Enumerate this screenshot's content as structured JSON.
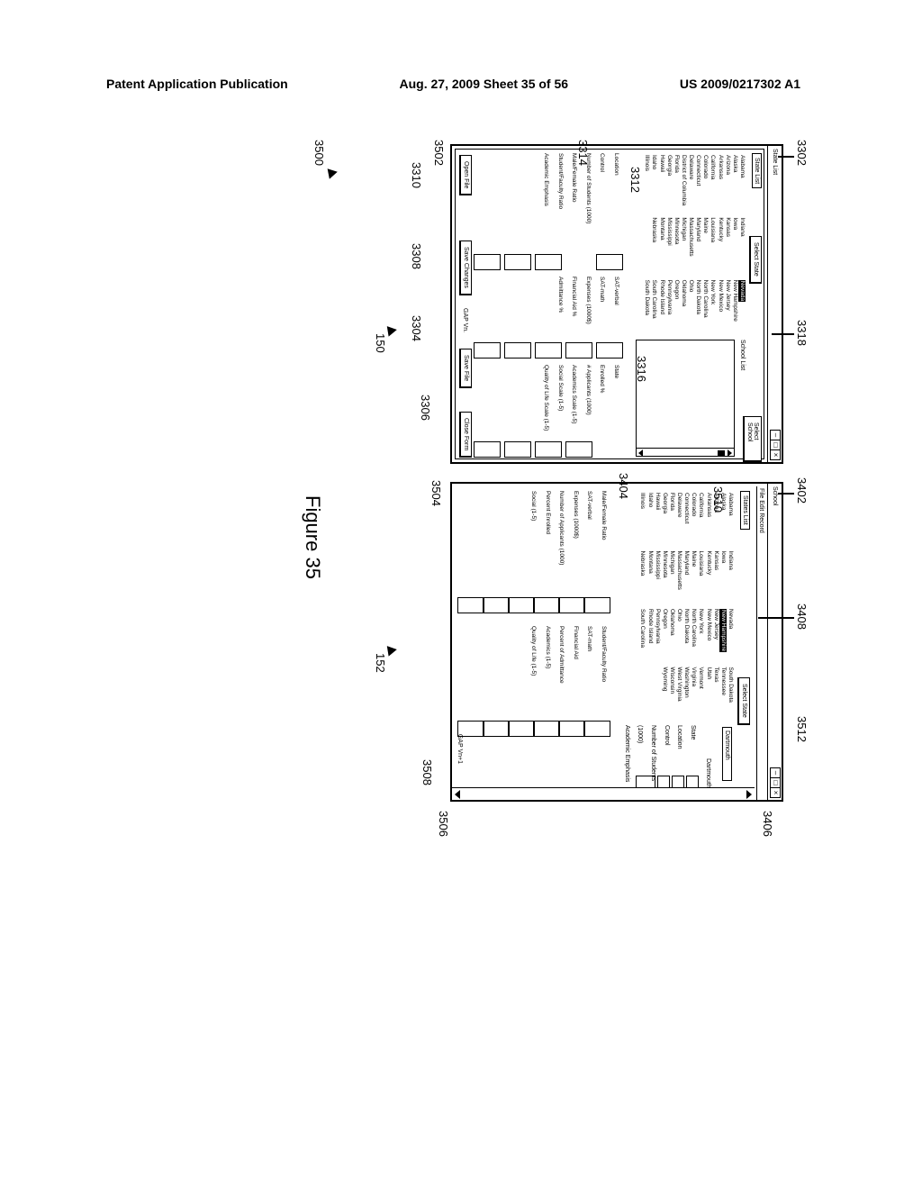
{
  "header": {
    "left": "Patent Application Publication",
    "center": "Aug. 27, 2009  Sheet 35 of 56",
    "right": "US 2009/0217302 A1"
  },
  "figure_label": "Figure 35",
  "refs": {
    "r3302": "3302",
    "r3318": "3318",
    "r3402": "3402",
    "r3408": "3408",
    "r3512": "3512",
    "r3406": "3406",
    "r3312": "3312",
    "r3316": "3316",
    "r3314": "3314",
    "r3404": "3404",
    "r3510": "3510",
    "r3502": "3502",
    "r3310": "3310",
    "r3308": "3308",
    "r3304": "3304",
    "r3306": "3306",
    "r3504": "3504",
    "r3506": "3506",
    "r3508": "3508",
    "r3500": "3500",
    "r150": "150",
    "r152": "152"
  },
  "win1": {
    "title": "State List",
    "section": "State List",
    "select_state": "Select State",
    "select_school": "Select School",
    "school_list": "School List",
    "col1": [
      "Alabama",
      "Alaska",
      "Arizona",
      "Arkansas",
      "California",
      "Colorado",
      "Connecticut",
      "Delaware",
      "District of Columbia",
      "Florida",
      "Georgia",
      "Hawaii",
      "Idaho",
      "Illinois"
    ],
    "col2": [
      "Indiana",
      "Iowa",
      "Kansas",
      "Kentucky",
      "Louisiana",
      "Maine",
      "Maryland",
      "Massachusetts",
      "Michigan",
      "Minnesota",
      "Mississippi",
      "Montana",
      "Nebraska"
    ],
    "col3_highlight": "Nevada",
    "col3": [
      "New Hampshire",
      "New Jersey",
      "New Mexico",
      "New York",
      "North Carolina",
      "North Dakota",
      "Ohio",
      "Oklahoma",
      "Oregon",
      "Pennsylvania",
      "Rhode Island",
      "South Carolina",
      "South Dakota"
    ],
    "bottom_left_labels": [
      "Location",
      "Control",
      "Number of Students (1000)",
      "Male/Female Ratio",
      "Student/Faculty Ratio",
      "Academic Emphasis"
    ],
    "bottom_mid_labels": [
      "SAT-verbal",
      "SAT-math",
      "Expenses (1000$)",
      "Financial Aid %",
      "Admittance %"
    ],
    "bottom_right_labels": [
      "State",
      "Enrolled %",
      "# Applicants (1000)",
      "Academics Scale (1-5)",
      "Social Scale (1-5)",
      "Quality of Life Scale (1-5)"
    ],
    "buttons": {
      "open": "Open File",
      "save_changes": "Save Changes",
      "save_file": "Save File",
      "close_form": "Close Form"
    },
    "gap_vn": "GAP Vn."
  },
  "win2": {
    "title": "School",
    "menu": "File  Edit  Record",
    "section": "States List",
    "select_state": "Select State",
    "col1": [
      "Alabama",
      "Alaska",
      "Arizona",
      "Arkansas",
      "California",
      "Colorado",
      "Connecticut",
      "Delaware",
      "Florida",
      "Georgia",
      "Hawaii",
      "Idaho",
      "Illinois"
    ],
    "col2": [
      "Indiana",
      "Iowa",
      "Kansas",
      "Kentucky",
      "Louisiana",
      "Maine",
      "Maryland",
      "Massachusetts",
      "Michigan",
      "Minnesota",
      "Mississippi",
      "Montana",
      "Nebraska"
    ],
    "col3_top": "Nevada",
    "col3_highlight": "New Hampshire",
    "col3": [
      "New Jersey",
      "New Mexico",
      "New York",
      "North Carolina",
      "North Dakota",
      "Ohio",
      "Oklahoma",
      "Oregon",
      "Pennsylvania",
      "Rhode Island",
      "South Carolina"
    ],
    "col4": [
      "South Dakota",
      "Tennessee",
      "Texas",
      "Utah",
      "Vermont",
      "Virginia",
      "Washington",
      "West Virginia",
      "Wisconsin",
      "Wyoming"
    ],
    "school_name": "Dartmouth",
    "school_name2": "Dartmouth",
    "detail_labels": [
      "State",
      "Location",
      "Control",
      "Number of Students (1000)",
      "Academic Emphasis"
    ],
    "ind_left": [
      "Male/Female Ratio",
      "SAT-verbal",
      "Expenses (1000$)",
      "Number of Applicants (1000)",
      "Percent Enrolled",
      "Social (1-5)"
    ],
    "ind_right": [
      "Student/Faculty Ratio",
      "SAT-math",
      "Financial Aid",
      "Percent of Admittance",
      "Academics (1-5)",
      "Quality of Life (1-5)"
    ],
    "gap_vn": "GAP Vn+1"
  }
}
